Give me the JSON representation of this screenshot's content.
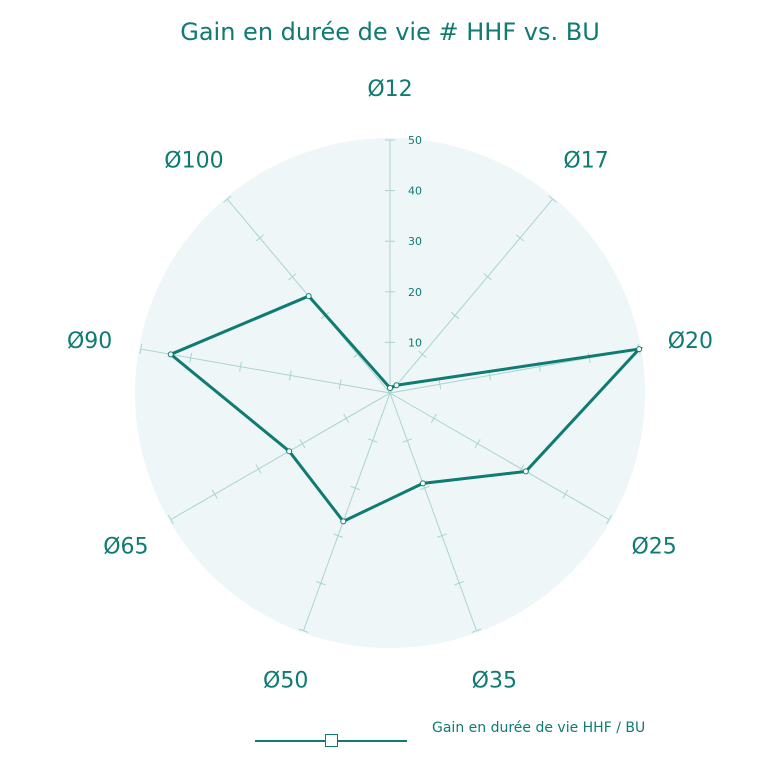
{
  "chart_data": {
    "type": "radar",
    "title": "Gain en durée de vie # HHF vs. BU",
    "categories": [
      "Ø12",
      "Ø17",
      "Ø20",
      "Ø25",
      "Ø35",
      "Ø50",
      "Ø65",
      "Ø90",
      "Ø100"
    ],
    "series": [
      {
        "name": "Gain en durée de vie HHF / BU",
        "values": [
          1,
          2,
          50,
          31,
          19,
          27,
          23,
          44,
          25
        ]
      }
    ],
    "rlim": [
      0,
      50
    ],
    "ticks": [
      10,
      20,
      30,
      40,
      50
    ],
    "tick_labels": [
      "10",
      "20",
      "30",
      "40",
      "50"
    ],
    "legend": {
      "position": "bottom",
      "label": "Gain en durée de vie HHF / BU"
    },
    "colors": {
      "series": "#0f7b72",
      "disc": "#eef6f8",
      "spokes": "#a9d4cf",
      "text": "#0f7b72"
    }
  }
}
